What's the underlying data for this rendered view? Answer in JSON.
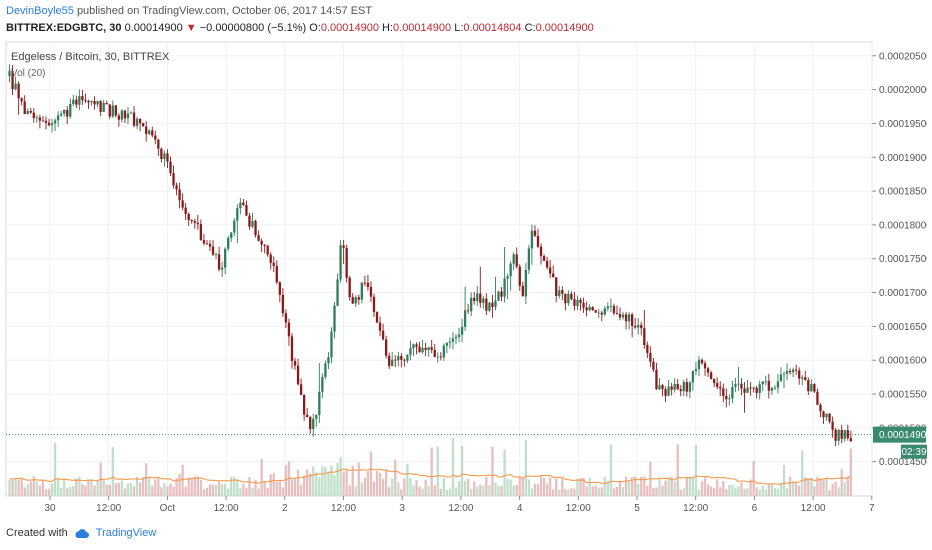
{
  "header": {
    "author": "DevinBoyle55",
    "published_text": "published on TradingView.com, October 06, 2017 14:57 EST",
    "symbol": "BITTREX:EDGBTC, 30",
    "last": "0.00014900",
    "change": "−0.00000800 (−5.1%)",
    "o_label": "O:",
    "o_value": "0.00014900",
    "h_label": "H:",
    "h_value": "0.00014900",
    "l_label": "L:",
    "l_value": "0.00014804",
    "c_label": "C:",
    "c_value": "0.00014900"
  },
  "legend": {
    "title": "Edgeless / Bitcoin, 30, BITTREX",
    "volume": "Vol (20)"
  },
  "price_tag": {
    "value": "0.00014900",
    "countdown": "02:39"
  },
  "footer": {
    "created_with": "Created with",
    "brand": "TradingView"
  },
  "colors": {
    "up": "#2e7d5b",
    "down": "#8b1a1a",
    "vol_up": "#b9dcc4",
    "vol_down": "#e6b8b8",
    "vol_ma": "#f79a4d",
    "last_price_line": "#3a8a6e",
    "grid": "#eef0f4",
    "brand": "#2b7de0"
  },
  "chart_data": {
    "type": "candlestick",
    "title": "Edgeless / Bitcoin, 30, BITTREX",
    "y_axis": {
      "ticks": [
        "0.00020500",
        "0.00020000",
        "0.00019500",
        "0.00019000",
        "0.00018500",
        "0.00018000",
        "0.00017500",
        "0.00017000",
        "0.00016500",
        "0.00016000",
        "0.00015500",
        "0.00015000",
        "0.00014500"
      ],
      "ylim": [
        0.000142,
        0.000206
      ]
    },
    "x_axis": {
      "ticks": [
        "30",
        "12:00",
        "Oct",
        "12:00",
        "2",
        "12:00",
        "3",
        "12:00",
        "4",
        "12:00",
        "5",
        "12:00",
        "6",
        "12:00",
        "7"
      ]
    },
    "price_path": [
      [
        0,
        0.000202
      ],
      [
        0.02,
        0.000196
      ],
      [
        0.05,
        0.000195
      ],
      [
        0.08,
        0.0001985
      ],
      [
        0.11,
        0.000197
      ],
      [
        0.14,
        0.000196
      ],
      [
        0.16,
        0.0001935
      ],
      [
        0.18,
        0.00019
      ],
      [
        0.195,
        0.0001845
      ],
      [
        0.22,
        0.000179
      ],
      [
        0.245,
        0.0001735
      ],
      [
        0.255,
        0.000178
      ],
      [
        0.265,
        0.0001835
      ],
      [
        0.285,
        0.000179
      ],
      [
        0.3,
        0.000176
      ],
      [
        0.315,
        0.000169
      ],
      [
        0.33,
        0.000159
      ],
      [
        0.34,
        0.000153
      ],
      [
        0.35,
        0.0001495
      ],
      [
        0.36,
        0.000155
      ],
      [
        0.375,
        0.000165
      ],
      [
        0.385,
        0.0001785
      ],
      [
        0.39,
        0.000172
      ],
      [
        0.4,
        0.000168
      ],
      [
        0.41,
        0.000172
      ],
      [
        0.42,
        0.000168
      ],
      [
        0.43,
        0.000164
      ],
      [
        0.44,
        0.00016
      ],
      [
        0.46,
        0.000161
      ],
      [
        0.48,
        0.000162
      ],
      [
        0.5,
        0.000161
      ],
      [
        0.52,
        0.000164
      ],
      [
        0.54,
        0.00017
      ],
      [
        0.555,
        0.000168
      ],
      [
        0.57,
        0.00017
      ],
      [
        0.585,
        0.000175
      ],
      [
        0.595,
        0.00017
      ],
      [
        0.605,
        0.0001795
      ],
      [
        0.62,
        0.000175
      ],
      [
        0.635,
        0.00017
      ],
      [
        0.65,
        0.000169
      ],
      [
        0.67,
        0.000168
      ],
      [
        0.69,
        0.000167
      ],
      [
        0.71,
        0.000167
      ],
      [
        0.73,
        0.000165
      ],
      [
        0.745,
        0.000158
      ],
      [
        0.755,
        0.000155
      ],
      [
        0.77,
        0.000156
      ],
      [
        0.785,
        0.000156
      ],
      [
        0.8,
        0.00016
      ],
      [
        0.815,
        0.000156
      ],
      [
        0.83,
        0.000155
      ],
      [
        0.85,
        0.000156
      ],
      [
        0.87,
        0.000156
      ],
      [
        0.895,
        0.000157
      ],
      [
        0.91,
        0.0001585
      ],
      [
        0.925,
        0.0001565
      ],
      [
        0.94,
        0.000153
      ],
      [
        0.955,
        0.000149
      ],
      [
        0.965,
        0.000149
      ],
      [
        0.975,
        0.000149
      ]
    ],
    "last_price": 0.000149
  }
}
